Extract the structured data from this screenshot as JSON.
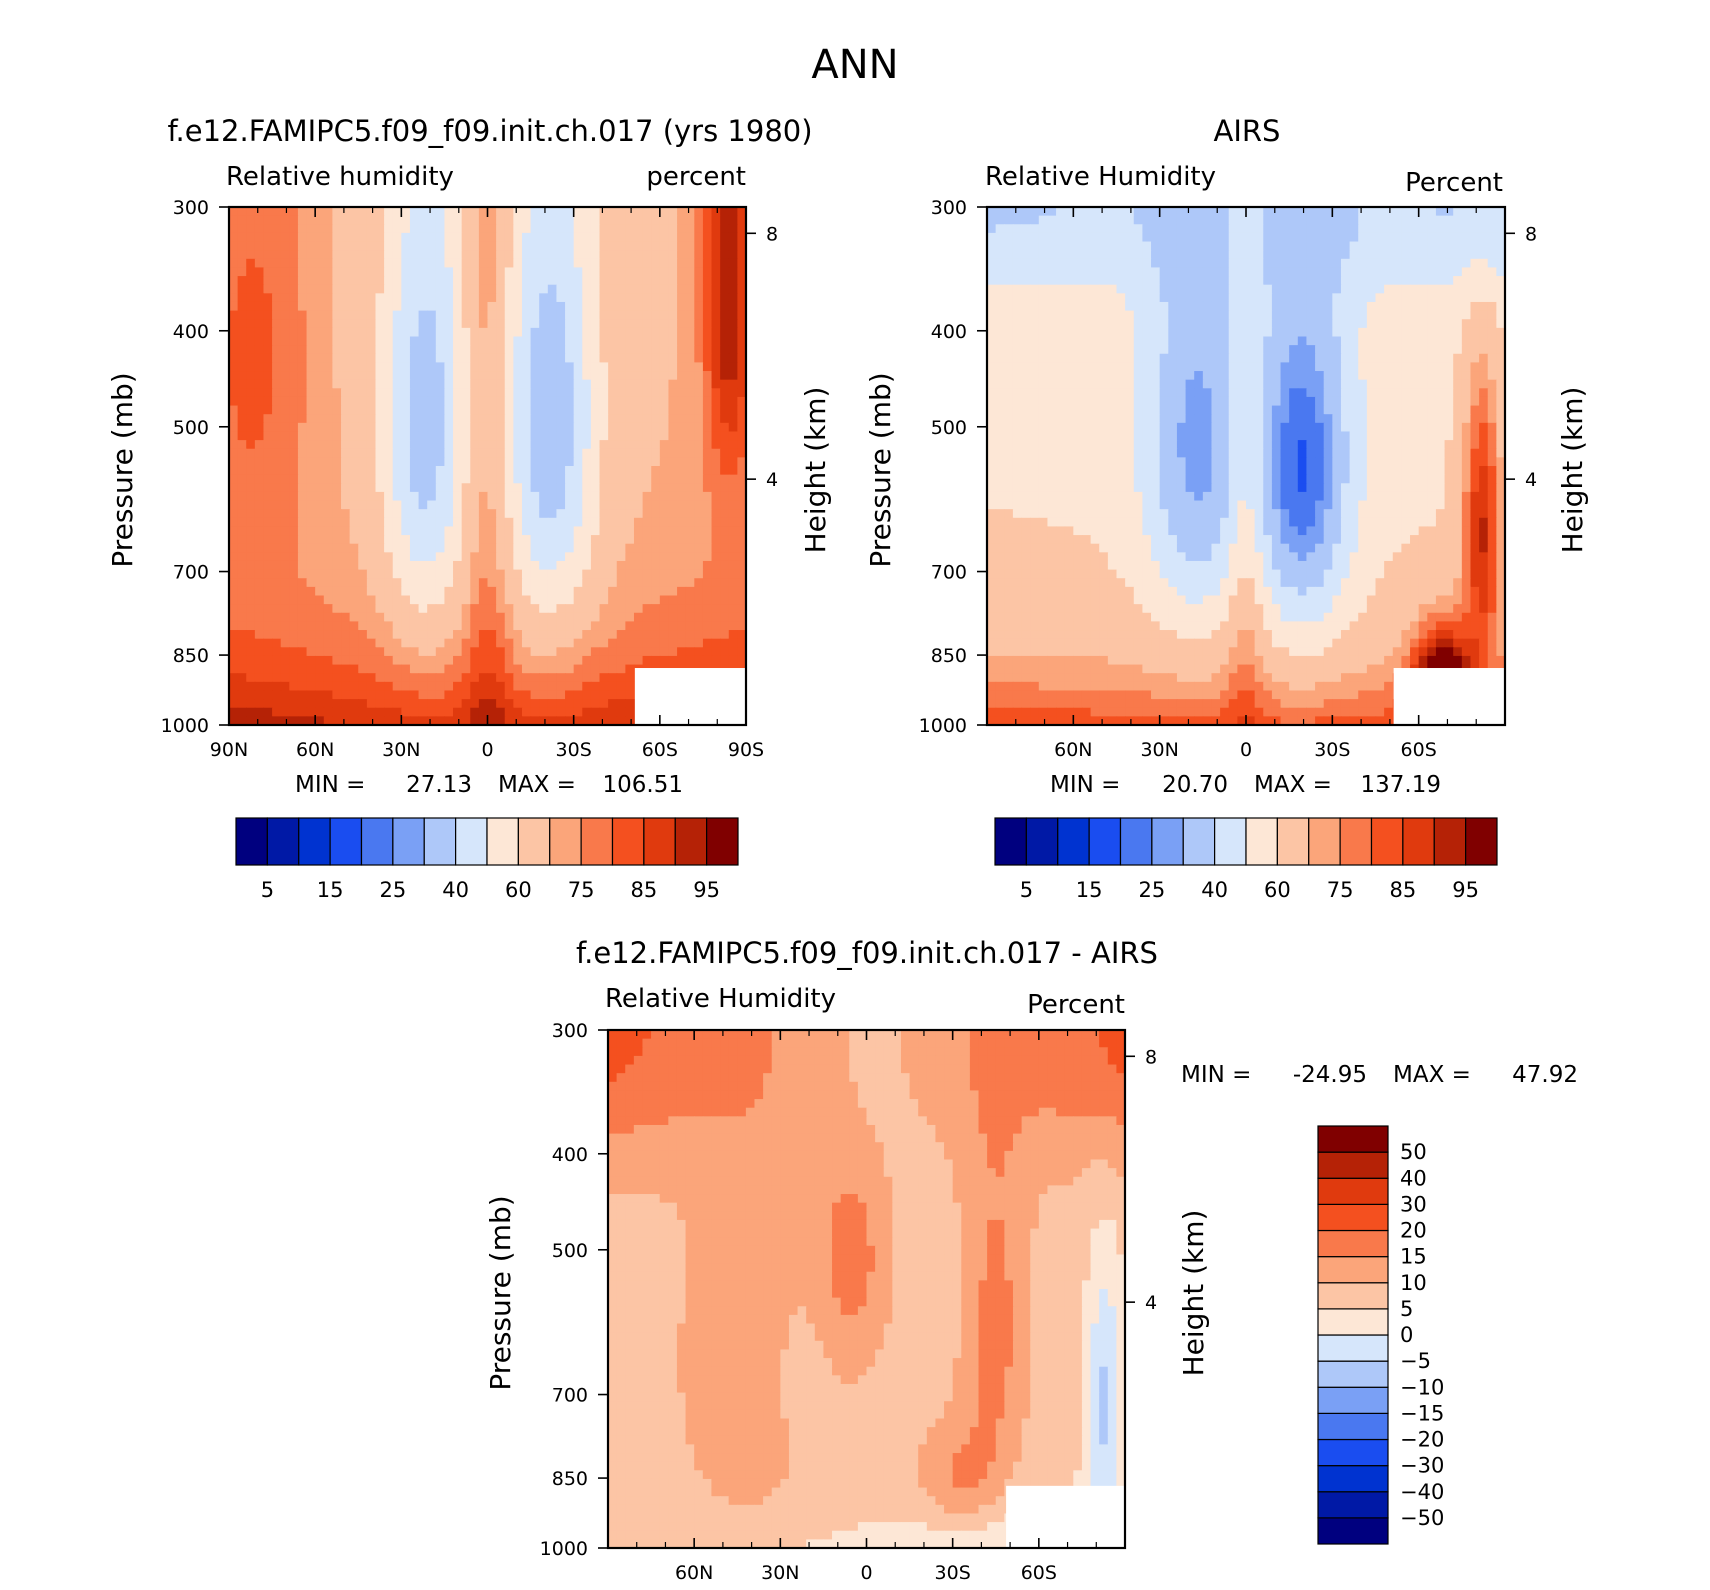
{
  "figure_title": "ANN",
  "chart_data": [
    {
      "type": "heatmap",
      "title": "f.e12.FAMIPC5.f09_f09.init.ch.017 (yrs 1980)",
      "left_label": "Relative humidity",
      "right_label": "percent",
      "ylabel": "Pressure (mb)",
      "y2label": "Height (km)",
      "x_ticks": [
        "90N",
        "60N",
        "30N",
        "0",
        "30S",
        "60S",
        "90S"
      ],
      "x_tick_lats": [
        90,
        60,
        30,
        0,
        -30,
        -60,
        -90
      ],
      "xlim": [
        90,
        -90
      ],
      "y_ticks": [
        300,
        400,
        500,
        700,
        850,
        1000
      ],
      "y2_ticks": [
        8,
        4
      ],
      "ylim": [
        300,
        1000
      ],
      "min_label": "MIN =",
      "min_value": "27.13",
      "max_label": "MAX =",
      "max_value": "106.51",
      "colorbar": {
        "orientation": "horizontal",
        "levels": [
          5,
          10,
          15,
          20,
          25,
          30,
          40,
          50,
          60,
          70,
          75,
          80,
          85,
          90,
          95
        ],
        "labels": [
          "5",
          "15",
          "25",
          "40",
          "60",
          "75",
          "85",
          "95"
        ],
        "colors": [
          "#00007f",
          "#0019a6",
          "#0033d0",
          "#1a4df0",
          "#4a78f0",
          "#7aa0f5",
          "#aec8f9",
          "#d6e6fb",
          "#fde7d6",
          "#fcc5a5",
          "#fba57a",
          "#f9794b",
          "#f4501f",
          "#e03a0e",
          "#b52206",
          "#800000"
        ]
      }
    },
    {
      "type": "heatmap",
      "title": "AIRS",
      "left_label": "Relative Humidity",
      "right_label": "Percent",
      "ylabel": "Pressure (mb)",
      "y2label": "Height (km)",
      "x_ticks": [
        "60N",
        "30N",
        "0",
        "30S",
        "60S"
      ],
      "x_tick_lats": [
        60,
        30,
        0,
        -30,
        -60
      ],
      "xlim": [
        90,
        -90
      ],
      "y_ticks": [
        300,
        400,
        500,
        700,
        850,
        1000
      ],
      "y2_ticks": [
        8,
        4
      ],
      "ylim": [
        300,
        1000
      ],
      "min_label": "MIN =",
      "min_value": "20.70",
      "max_label": "MAX =",
      "max_value": "137.19",
      "colorbar": {
        "orientation": "horizontal",
        "levels": [
          5,
          10,
          15,
          20,
          25,
          30,
          40,
          50,
          60,
          70,
          75,
          80,
          85,
          90,
          95
        ],
        "labels": [
          "5",
          "15",
          "25",
          "40",
          "60",
          "75",
          "85",
          "95"
        ],
        "colors": [
          "#00007f",
          "#0019a6",
          "#0033d0",
          "#1a4df0",
          "#4a78f0",
          "#7aa0f5",
          "#aec8f9",
          "#d6e6fb",
          "#fde7d6",
          "#fcc5a5",
          "#fba57a",
          "#f9794b",
          "#f4501f",
          "#e03a0e",
          "#b52206",
          "#800000"
        ]
      }
    },
    {
      "type": "heatmap",
      "title": "f.e12.FAMIPC5.f09_f09.init.ch.017 - AIRS",
      "left_label": "Relative Humidity",
      "right_label": "Percent",
      "ylabel": "Pressure (mb)",
      "y2label": "Height (km)",
      "x_ticks": [
        "60N",
        "30N",
        "0",
        "30S",
        "60S"
      ],
      "x_tick_lats": [
        60,
        30,
        0,
        -30,
        -60
      ],
      "xlim": [
        90,
        -90
      ],
      "y_ticks": [
        300,
        400,
        500,
        700,
        850,
        1000
      ],
      "y2_ticks": [
        8,
        4
      ],
      "ylim": [
        300,
        1000
      ],
      "min_label": "MIN =",
      "min_value": "-24.95",
      "max_label": "MAX =",
      "max_value": "47.92",
      "colorbar": {
        "orientation": "vertical",
        "levels": [
          -50,
          -40,
          -30,
          -20,
          -15,
          -10,
          -5,
          0,
          5,
          10,
          15,
          20,
          30,
          40,
          50
        ],
        "labels": [
          "-50",
          "-40",
          "-30",
          "-20",
          "-15",
          "-10",
          "-5",
          "0",
          "5",
          "10",
          "15",
          "20",
          "30",
          "40",
          "50"
        ],
        "colors": [
          "#00007f",
          "#0019a6",
          "#0033d0",
          "#1a4df0",
          "#4a78f0",
          "#7aa0f5",
          "#aec8f9",
          "#d6e6fb",
          "#fde7d6",
          "#fcc5a5",
          "#fba57a",
          "#f9794b",
          "#f4501f",
          "#e03a0e",
          "#b52206",
          "#800000"
        ]
      }
    }
  ]
}
